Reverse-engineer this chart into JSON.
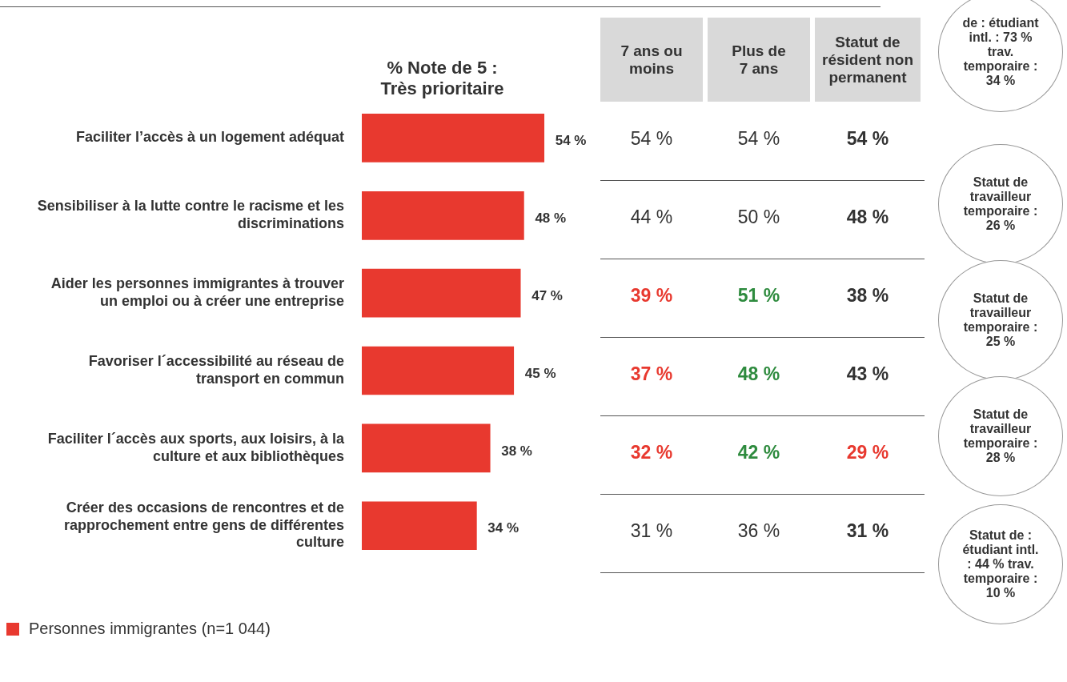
{
  "chart_data": [
    {
      "type": "bar",
      "orientation": "horizontal",
      "title": "% Note de 5 : Très prioritaire",
      "legend": "bottom left",
      "categories": [
        "Faciliter l’accès à un logement adéquat",
        "Sensibiliser à la lutte contre le racisme et les discriminations",
        "Aider les personnes immigrantes à trouver un emploi ou à créer une entreprise",
        "Favoriser l´accessibilité au réseau de transport en commun",
        "Faciliter l´accès aux sports, aux loisirs, à la culture et aux bibliothèques",
        "Créer des occasions de rencontres et de rapprochement entre gens de différentes culture"
      ],
      "series": [
        {
          "name": "Personnes immigrantes (n=1 044)",
          "color": "#e8392f",
          "values": [
            54,
            48,
            47,
            45,
            38,
            34
          ],
          "value_labels": [
            "54 %",
            "48 %",
            "47 %",
            "45 %",
            "38 %",
            "34 %"
          ]
        }
      ]
    },
    {
      "type": "other",
      "categories": [
        "7 ans ou moins",
        "Plus de 7 ans",
        "Statut de résident non permanent"
      ],
      "cell_labels": [
        [
          "54 %",
          "54 %",
          "54 %"
        ],
        [
          "44 %",
          "50 %",
          "48 %"
        ],
        [
          "39 %",
          "51 %",
          "38 %"
        ],
        [
          "37 %",
          "48 %",
          "43 %"
        ],
        [
          "32 %",
          "42 %",
          "29 %"
        ],
        [
          "31 %",
          "36 %",
          "31 %"
        ]
      ],
      "colors": [
        [
          "#333333",
          "#333333",
          "#333333"
        ],
        [
          "#333333",
          "#333333",
          "#333333"
        ],
        [
          "#e8392f",
          "#2e8b3e",
          "#333333"
        ],
        [
          "#e8392f",
          "#2e8b3e",
          "#333333"
        ],
        [
          "#e8392f",
          "#2e8b3e",
          "#e8392f"
        ],
        [
          "#333333",
          "#333333",
          "#333333"
        ]
      ],
      "annotations": [
        "de : étudiant intl. : 73 % trav. temporaire : 34 %",
        "Statut de travailleur temporaire : 26 %",
        "Statut de travailleur temporaire : 25 %",
        "Statut de travailleur temporaire : 28 %",
        "Statut de : étudiant intl. : 44 % trav. temporaire : 10 %"
      ]
    }
  ]
}
